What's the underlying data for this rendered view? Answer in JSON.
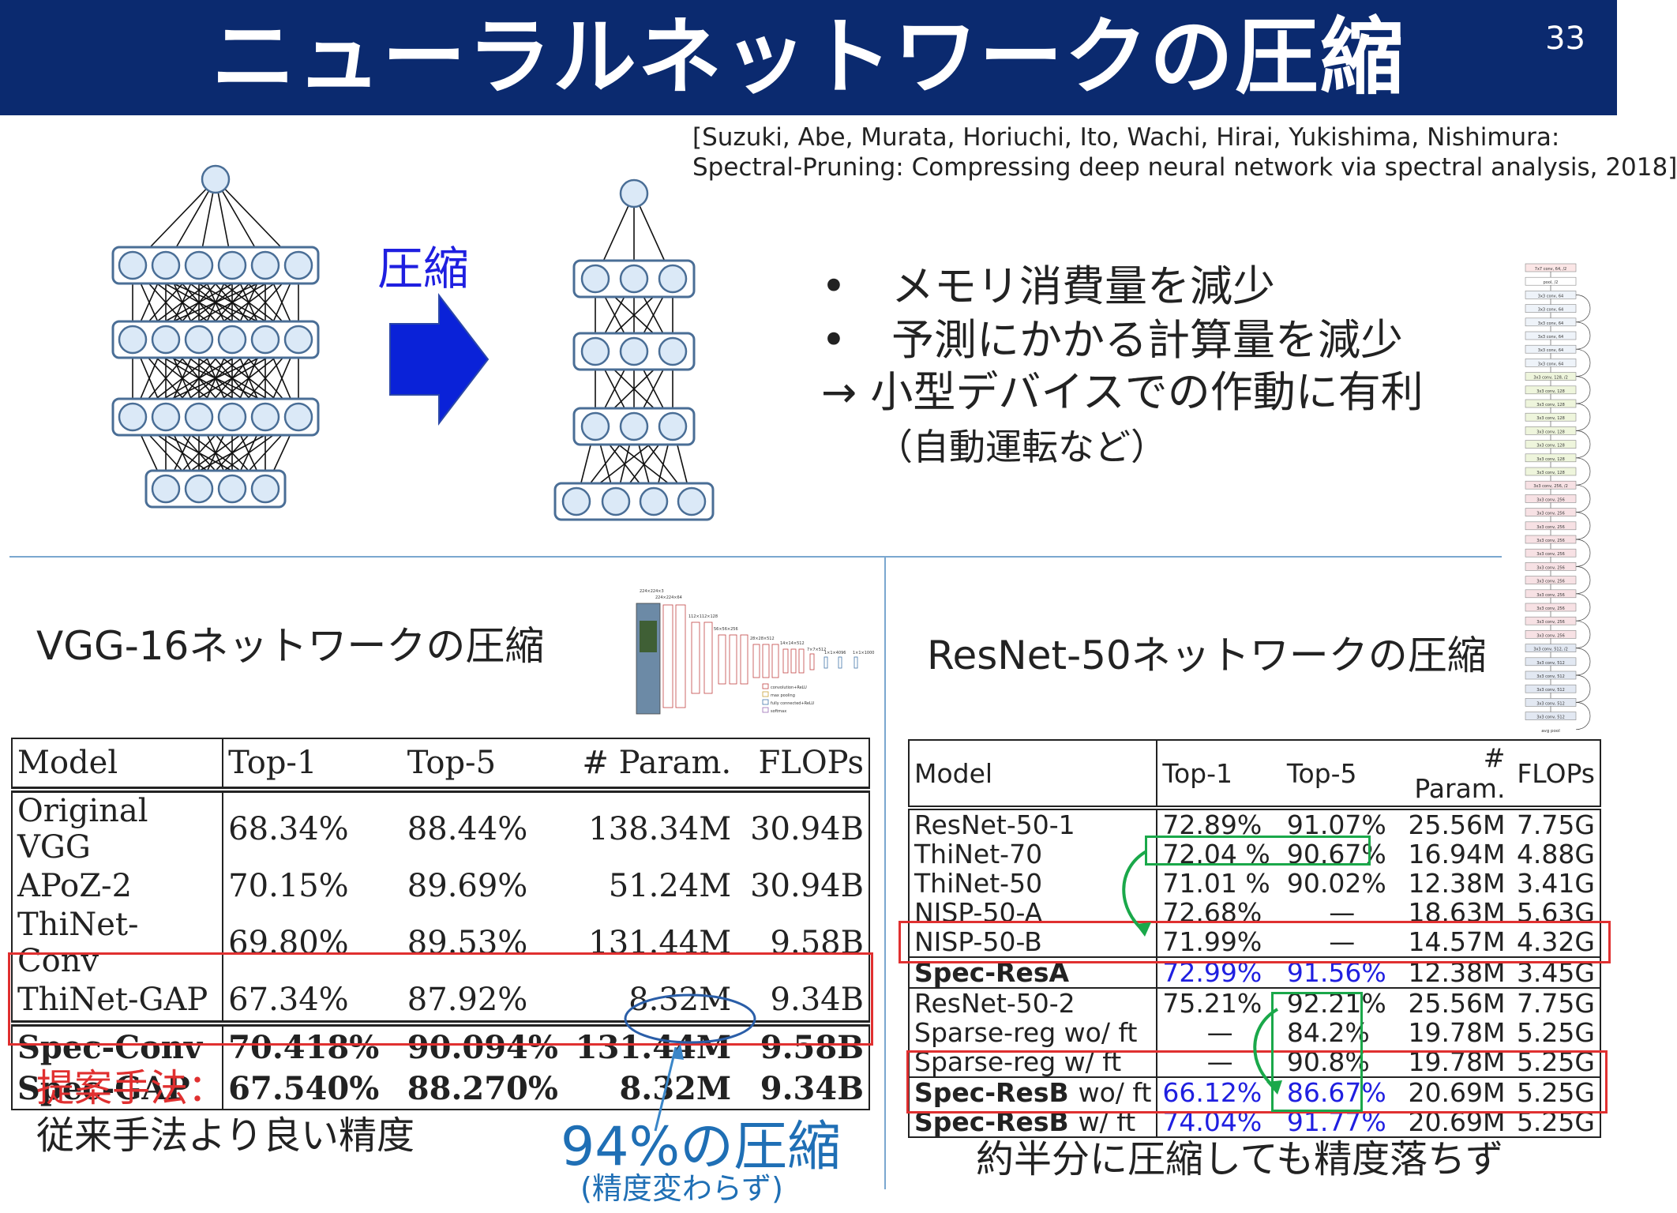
{
  "slide": {
    "title": "ニューラルネットワークの圧縮",
    "page_number": "33",
    "citation_line1": "[Suzuki, Abe, Murata, Horiuchi, Ito, Wachi, Hirai, Yukishima, Nishimura:",
    "citation_line2": "Spectral-Pruning: Compressing deep neural network via spectral analysis, 2018]",
    "arrow_label": "圧縮",
    "bullets": [
      "メモリ消費量を減少",
      "予測にかかる計算量を減少"
    ],
    "bullet_symbol": "•",
    "conclusion": "→ 小型デバイスでの作動に有利",
    "conclusion_sub": "（自動運転など）",
    "colors": {
      "header_bg": "#0b2a6f",
      "red": "#e03030",
      "green": "#1aa84a",
      "blue_text": "#1f1fe0",
      "arrow_blue": "#0a22d8",
      "node_fill": "#dbe9f7",
      "node_stroke": "#4a6e96"
    }
  },
  "vgg": {
    "section_title": "VGG-16ネットワークの圧縮",
    "columns": [
      "Model",
      "Top-1",
      "Top-5",
      "# Param.",
      "FLOPs"
    ],
    "rows": [
      [
        "Original VGG",
        "68.34%",
        "88.44%",
        "138.34M",
        "30.94B"
      ],
      [
        "APoZ-2",
        "70.15%",
        "89.69%",
        "51.24M",
        "30.94B"
      ],
      [
        "ThiNet-Conv",
        "69.80%",
        "89.53%",
        "131.44M",
        "9.58B"
      ],
      [
        "ThiNet-GAP",
        "67.34%",
        "87.92%",
        "8.32M",
        "9.34B"
      ]
    ],
    "proposed_rows": [
      [
        "Spec-Conv",
        "70.418%",
        "90.094%",
        "131.44M",
        "9.58B"
      ],
      [
        "Spec-GAP",
        "67.540%",
        "88.270%",
        "8.32M",
        "9.34B"
      ]
    ],
    "note_title": "提案手法：",
    "note_text": "従来手法より良い精度",
    "compression_big": "94%の圧縮",
    "compression_small": "(精度変わらず)"
  },
  "resnet": {
    "section_title": "ResNet-50ネットワークの圧縮",
    "columns": [
      "Model",
      "Top-1",
      "Top-5",
      "# Param.",
      "FLOPs"
    ],
    "group1": [
      [
        "ResNet-50-1",
        "72.89%",
        "91.07%",
        "25.56M",
        "7.75G"
      ],
      [
        "ThiNet-70",
        "72.04 %",
        "90.67%",
        "16.94M",
        "4.88G"
      ],
      [
        "ThiNet-50",
        "71.01 %",
        "90.02%",
        "12.38M",
        "3.41G"
      ],
      [
        "NISP-50-A",
        "72.68%",
        "—",
        "18.63M",
        "5.63G"
      ],
      [
        "NISP-50-B",
        "71.99%",
        "—",
        "14.57M",
        "4.32G"
      ]
    ],
    "spec_a": [
      "Spec-ResA",
      "72.99%",
      "91.56%",
      "12.38M",
      "3.45G"
    ],
    "group2": [
      [
        "ResNet-50-2",
        "75.21%",
        "92.21%",
        "25.56M",
        "7.75G"
      ],
      [
        "Sparse-reg wo/ ft",
        "—",
        "84.2%",
        "19.78M",
        "5.25G"
      ],
      [
        "Sparse-reg w/ ft",
        "—",
        "90.8%",
        "19.78M",
        "5.25G"
      ]
    ],
    "spec_b_rows": [
      [
        "Spec-ResB",
        "wo/ ft",
        "66.12%",
        "86.67%",
        "20.69M",
        "5.25G"
      ],
      [
        "Spec-ResB",
        "w/ ft",
        "74.04%",
        "91.77%",
        "20.69M",
        "5.25G"
      ]
    ],
    "note": "約半分に圧縮しても精度落ちず"
  },
  "vgg_thumbnail": {
    "legend": [
      "convolution+ReLU",
      "max pooling",
      "fully connected+ReLU",
      "softmax"
    ],
    "dims": [
      "224×224×3",
      "224×224×64",
      "112×112×128",
      "56×56×256",
      "28×28×512",
      "14×14×512",
      "7×7×512",
      "1×1×4096",
      "1×1×1000"
    ]
  },
  "resnet_thumbnail": {
    "layers": [
      "7x7 conv, 64, /2",
      "pool, /2",
      "3x3 conv, 64",
      "3x3 conv, 64",
      "3x3 conv, 64",
      "3x3 conv, 64",
      "3x3 conv, 64",
      "3x3 conv, 64",
      "3x3 conv, 128, /2",
      "3x3 conv, 128",
      "3x3 conv, 128",
      "3x3 conv, 128",
      "3x3 conv, 128",
      "3x3 conv, 128",
      "3x3 conv, 128",
      "3x3 conv, 128",
      "3x3 conv, 256, /2",
      "3x3 conv, 256",
      "3x3 conv, 256",
      "3x3 conv, 256",
      "3x3 conv, 256",
      "3x3 conv, 256",
      "3x3 conv, 256",
      "3x3 conv, 256",
      "3x3 conv, 256",
      "3x3 conv, 256",
      "3x3 conv, 256",
      "3x3 conv, 256",
      "3x3 conv, 512, /2",
      "3x3 conv, 512",
      "3x3 conv, 512",
      "3x3 conv, 512",
      "3x3 conv, 512",
      "3x3 conv, 512"
    ],
    "footer": "avg pool"
  }
}
